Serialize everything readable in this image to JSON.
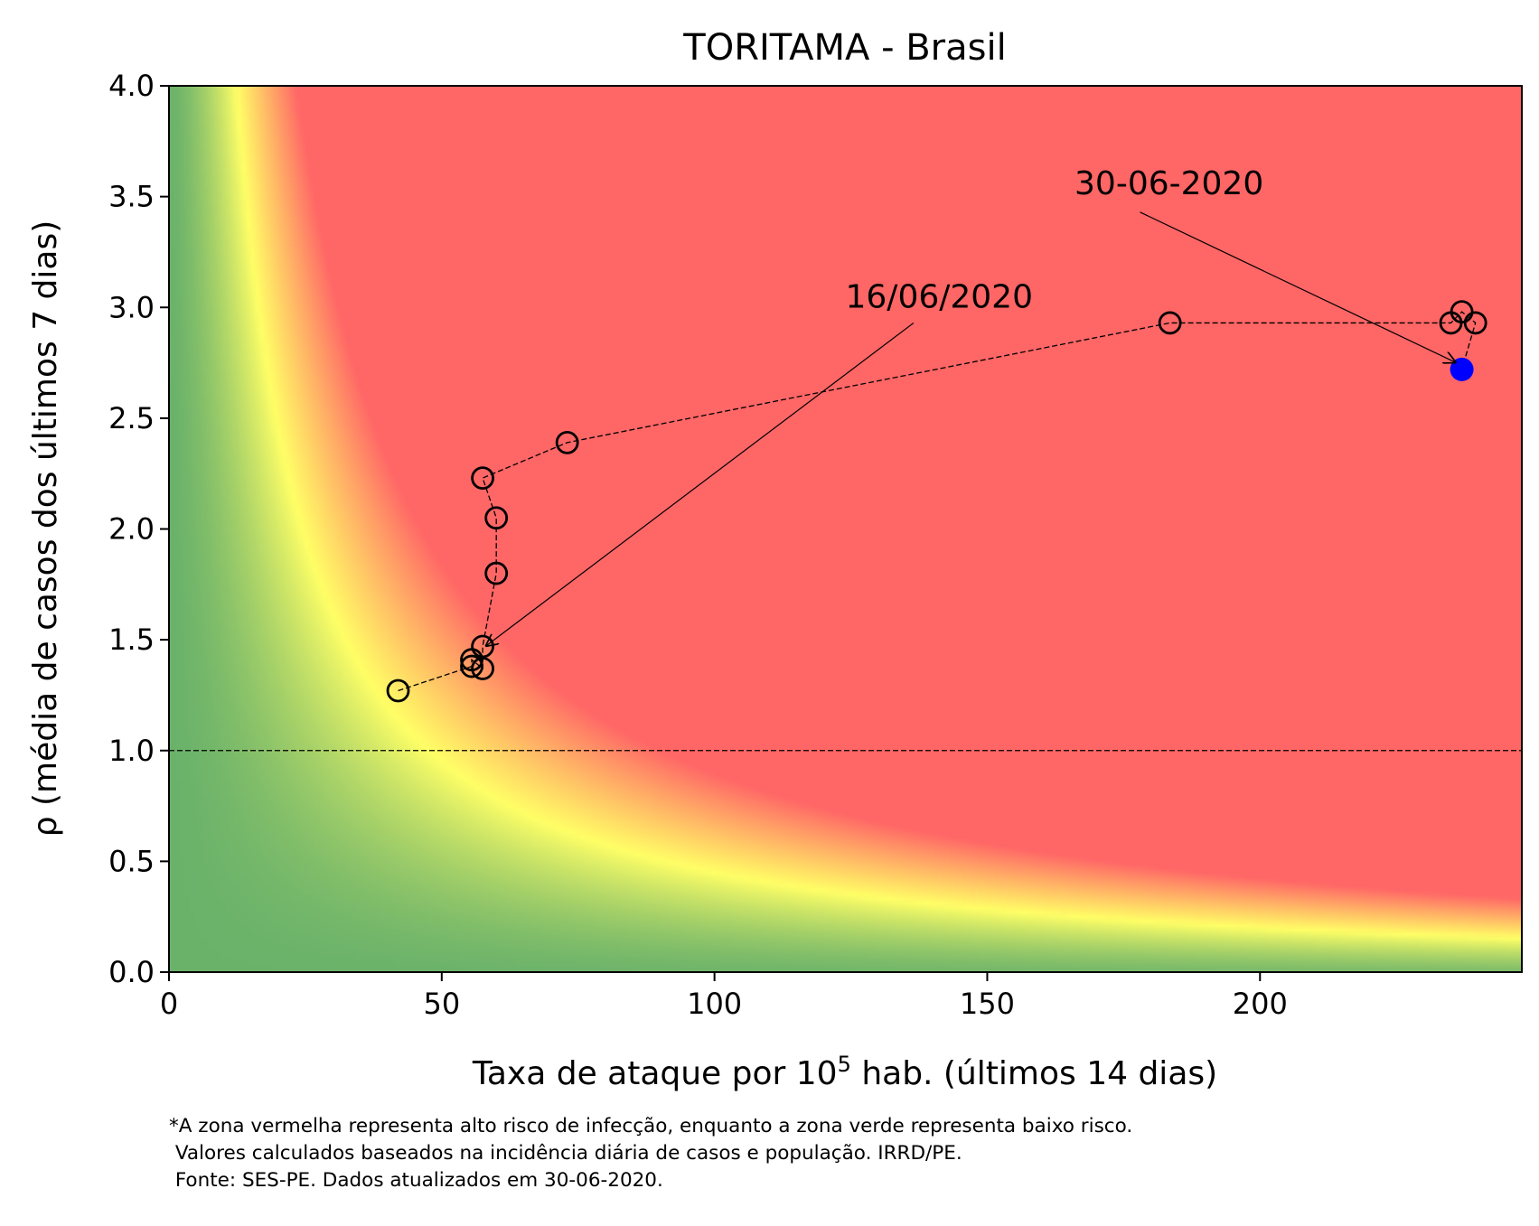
{
  "chart_data": {
    "type": "scatter",
    "title": "TORITAMA - Brasil",
    "xlabel_prefix": "Taxa de ataque por 10",
    "xlabel_sup": "5",
    "xlabel_suffix": " hab. (últimos 14 dias)",
    "ylabel": "ρ (média de casos dos últimos 7 dias)",
    "xlim": [
      0,
      248
    ],
    "ylim": [
      0,
      4
    ],
    "xticks": [
      0,
      50,
      100,
      150,
      200
    ],
    "xtick_labels": [
      "0",
      "50",
      "100",
      "150",
      "200"
    ],
    "yticks": [
      0.0,
      0.5,
      1.0,
      1.5,
      2.0,
      2.5,
      3.0,
      3.5,
      4.0
    ],
    "ytick_labels": [
      "0.0",
      "0.5",
      "1.0",
      "1.5",
      "2.0",
      "2.5",
      "3.0",
      "3.5",
      "4.0"
    ],
    "reference_line_y": 1.0,
    "background": "risk gradient: green (low risk) - yellow - red (high risk)",
    "colors": {
      "green": "#6ab26a",
      "yellow": "#ffff66",
      "red": "#ff6666",
      "marker_edge": "#000000",
      "current_point": "#0000ff"
    },
    "points": [
      {
        "x": 42,
        "y": 1.27
      },
      {
        "x": 55.5,
        "y": 1.38
      },
      {
        "x": 55.5,
        "y": 1.41
      },
      {
        "x": 57.5,
        "y": 1.37
      },
      {
        "x": 57.5,
        "y": 1.47
      },
      {
        "x": 60,
        "y": 1.8
      },
      {
        "x": 60,
        "y": 2.05
      },
      {
        "x": 57.5,
        "y": 2.23
      },
      {
        "x": 73,
        "y": 2.39
      },
      {
        "x": 183.5,
        "y": 2.93
      },
      {
        "x": 235,
        "y": 2.93
      },
      {
        "x": 237,
        "y": 2.98
      },
      {
        "x": 239.5,
        "y": 2.93
      },
      {
        "x": 237,
        "y": 2.72
      }
    ],
    "annotations": [
      {
        "text": "16/06/2020",
        "text_x": 124,
        "text_y": 3.0,
        "arrow_from": [
          136.5,
          2.93
        ],
        "arrow_to": [
          58,
          1.47
        ]
      },
      {
        "text": "30-06-2020",
        "text_x": 166,
        "text_y": 3.51,
        "arrow_from": [
          178,
          3.43
        ],
        "arrow_to": [
          236,
          2.75
        ]
      }
    ]
  },
  "footnote": {
    "line1": "*A zona vermelha representa alto risco de infecção, enquanto a zona verde representa baixo risco.",
    "line2": " Valores calculados baseados na incidência diária de casos e população. IRRD/PE.",
    "line3": " Fonte: SES-PE. Dados atualizados em 30-06-2020."
  }
}
